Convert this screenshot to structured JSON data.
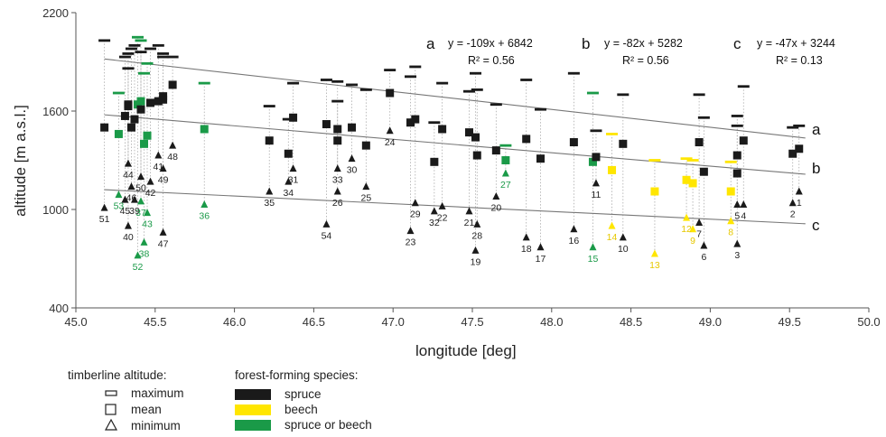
{
  "chart_data": {
    "type": "scatter",
    "xlabel": "longitude [deg]",
    "ylabel": "altitude [m a.s.l.]",
    "xlim": [
      45.0,
      50.0
    ],
    "ylim": [
      400,
      2200
    ],
    "xticks": [
      "45.0",
      "45.5",
      "46.0",
      "46.5",
      "47.0",
      "47.5",
      "48.0",
      "48.5",
      "49.0",
      "49.5",
      "50.0"
    ],
    "yticks": [
      "400",
      "1000",
      "1600",
      "2200"
    ],
    "colors": {
      "spruce": "#1a1a1a",
      "beech": "#ffe600",
      "spruce_or_beech": "#1a9a48"
    },
    "regressions": [
      {
        "letter": "a",
        "equation": "y = -109x + 6842",
        "r2": "R² = 0.56",
        "slope": -109,
        "intercept": 6842
      },
      {
        "letter": "b",
        "equation": "y = -82x + 5282",
        "r2": "R² = 0.56",
        "slope": -82,
        "intercept": 5282
      },
      {
        "letter": "c",
        "equation": "y = -47x + 3244",
        "r2": "R² = 0.13",
        "slope": -47,
        "intercept": 3244
      }
    ],
    "sites": [
      {
        "id": "51",
        "lon": 45.18,
        "max": 2030,
        "mean": 1500,
        "min": 1010,
        "species": "spruce"
      },
      {
        "id": "53",
        "lon": 45.27,
        "max": 1710,
        "mean": 1460,
        "min": 1090,
        "species": "spruce or beech"
      },
      {
        "id": "45",
        "lon": 45.31,
        "max": 1930,
        "mean": 1570,
        "min": 1060,
        "species": "spruce"
      },
      {
        "id": "44",
        "lon": 45.33,
        "max": 1860,
        "mean": 1630,
        "min": 1280,
        "species": "spruce"
      },
      {
        "id": "40",
        "lon": 45.33,
        "max": 1950,
        "mean": 1640,
        "min": 900,
        "species": "spruce"
      },
      {
        "id": "46",
        "lon": 45.35,
        "max": 1980,
        "mean": 1500,
        "min": 1140,
        "species": "spruce"
      },
      {
        "id": "39",
        "lon": 45.37,
        "max": 2000,
        "mean": 1550,
        "min": 1060,
        "species": "spruce"
      },
      {
        "id": "52",
        "lon": 45.39,
        "max": 2050,
        "mean": 1640,
        "min": 720,
        "species": "spruce or beech"
      },
      {
        "id": "37",
        "lon": 45.41,
        "max": 2030,
        "mean": 1660,
        "min": 1050,
        "species": "spruce or beech"
      },
      {
        "id": "50",
        "lon": 45.41,
        "max": 1960,
        "mean": 1610,
        "min": 1200,
        "species": "spruce"
      },
      {
        "id": "38",
        "lon": 45.43,
        "max": 1830,
        "mean": 1400,
        "min": 800,
        "species": "spruce or beech"
      },
      {
        "id": "43",
        "lon": 45.45,
        "max": 1890,
        "mean": 1450,
        "min": 980,
        "species": "spruce or beech"
      },
      {
        "id": "42",
        "lon": 45.47,
        "max": 1980,
        "mean": 1650,
        "min": 1170,
        "species": "spruce"
      },
      {
        "id": "41",
        "lon": 45.52,
        "max": 2000,
        "mean": 1660,
        "min": 1330,
        "species": "spruce"
      },
      {
        "id": "49",
        "lon": 45.55,
        "max": 1950,
        "mean": 1670,
        "min": 1250,
        "species": "spruce"
      },
      {
        "id": "47",
        "lon": 45.55,
        "max": 1930,
        "mean": 1690,
        "min": 860,
        "species": "spruce"
      },
      {
        "id": "48",
        "lon": 45.61,
        "max": 1930,
        "mean": 1760,
        "min": 1390,
        "species": "spruce"
      },
      {
        "id": "36",
        "lon": 45.81,
        "max": 1770,
        "mean": 1490,
        "min": 1030,
        "species": "spruce or beech"
      },
      {
        "id": "35",
        "lon": 46.22,
        "max": 1630,
        "mean": 1420,
        "min": 1110,
        "species": "spruce"
      },
      {
        "id": "34",
        "lon": 46.34,
        "max": 1550,
        "mean": 1340,
        "min": 1170,
        "species": "spruce"
      },
      {
        "id": "31",
        "lon": 46.37,
        "max": 1770,
        "mean": 1560,
        "min": 1250,
        "species": "spruce"
      },
      {
        "id": "54",
        "lon": 46.58,
        "max": 1790,
        "mean": 1520,
        "min": 910,
        "species": "spruce"
      },
      {
        "id": "33",
        "lon": 46.65,
        "max": 1780,
        "mean": 1490,
        "min": 1250,
        "species": "spruce"
      },
      {
        "id": "26",
        "lon": 46.65,
        "max": 1660,
        "mean": 1420,
        "min": 1110,
        "species": "spruce"
      },
      {
        "id": "30",
        "lon": 46.74,
        "max": 1760,
        "mean": 1500,
        "min": 1310,
        "species": "spruce"
      },
      {
        "id": "25",
        "lon": 46.83,
        "max": 1730,
        "mean": 1390,
        "min": 1140,
        "species": "spruce"
      },
      {
        "id": "24",
        "lon": 46.98,
        "max": 1850,
        "mean": 1710,
        "min": 1480,
        "species": "spruce"
      },
      {
        "id": "23",
        "lon": 47.11,
        "max": 1810,
        "mean": 1530,
        "min": 870,
        "species": "spruce"
      },
      {
        "id": "29",
        "lon": 47.14,
        "max": 1870,
        "mean": 1550,
        "min": 1040,
        "species": "spruce"
      },
      {
        "id": "32",
        "lon": 47.26,
        "max": 1530,
        "mean": 1290,
        "min": 990,
        "species": "spruce"
      },
      {
        "id": "22",
        "lon": 47.31,
        "max": 1770,
        "mean": 1490,
        "min": 1020,
        "species": "spruce"
      },
      {
        "id": "21",
        "lon": 47.48,
        "max": 1720,
        "mean": 1470,
        "min": 990,
        "species": "spruce"
      },
      {
        "id": "19",
        "lon": 47.52,
        "max": 1830,
        "mean": 1440,
        "min": 750,
        "species": "spruce"
      },
      {
        "id": "28",
        "lon": 47.53,
        "max": 1730,
        "mean": 1330,
        "min": 910,
        "species": "spruce"
      },
      {
        "id": "20",
        "lon": 47.65,
        "max": 1640,
        "mean": 1360,
        "min": 1080,
        "species": "spruce"
      },
      {
        "id": "27",
        "lon": 47.71,
        "max": 1390,
        "mean": 1300,
        "min": 1220,
        "species": "spruce or beech"
      },
      {
        "id": "18",
        "lon": 47.84,
        "max": 1790,
        "mean": 1430,
        "min": 830,
        "species": "spruce"
      },
      {
        "id": "17",
        "lon": 47.93,
        "max": 1610,
        "mean": 1310,
        "min": 770,
        "species": "spruce"
      },
      {
        "id": "16",
        "lon": 48.14,
        "max": 1830,
        "mean": 1410,
        "min": 880,
        "species": "spruce"
      },
      {
        "id": "15",
        "lon": 48.26,
        "max": 1710,
        "mean": 1290,
        "min": 770,
        "species": "spruce or beech"
      },
      {
        "id": "11",
        "lon": 48.28,
        "max": 1480,
        "mean": 1320,
        "min": 1160,
        "species": "spruce"
      },
      {
        "id": "14",
        "lon": 48.38,
        "max": 1460,
        "mean": 1240,
        "min": 900,
        "species": "beech"
      },
      {
        "id": "10",
        "lon": 48.45,
        "max": 1700,
        "mean": 1400,
        "min": 830,
        "species": "spruce"
      },
      {
        "id": "13",
        "lon": 48.65,
        "max": 1300,
        "mean": 1110,
        "min": 730,
        "species": "beech"
      },
      {
        "id": "12",
        "lon": 48.85,
        "max": 1310,
        "mean": 1180,
        "min": 950,
        "species": "beech"
      },
      {
        "id": "9",
        "lon": 48.89,
        "max": 1300,
        "mean": 1160,
        "min": 880,
        "species": "beech"
      },
      {
        "id": "7",
        "lon": 48.93,
        "max": 1700,
        "mean": 1410,
        "min": 920,
        "species": "spruce"
      },
      {
        "id": "6",
        "lon": 48.96,
        "max": 1560,
        "mean": 1230,
        "min": 780,
        "species": "spruce"
      },
      {
        "id": "8",
        "lon": 49.13,
        "max": 1290,
        "mean": 1110,
        "min": 930,
        "species": "beech"
      },
      {
        "id": "5",
        "lon": 49.17,
        "max": 1570,
        "mean": 1330,
        "min": 1030,
        "species": "spruce"
      },
      {
        "id": "3",
        "lon": 49.17,
        "max": 1510,
        "mean": 1220,
        "min": 790,
        "species": "spruce"
      },
      {
        "id": "4",
        "lon": 49.21,
        "max": 1750,
        "mean": 1420,
        "min": 1030,
        "species": "spruce"
      },
      {
        "id": "2",
        "lon": 49.52,
        "max": 1500,
        "mean": 1340,
        "min": 1040,
        "species": "spruce"
      },
      {
        "id": "1",
        "lon": 49.56,
        "max": 1510,
        "mean": 1370,
        "min": 1110,
        "species": "spruce"
      }
    ]
  },
  "legend": {
    "timberline": {
      "title": "timberline altitude:",
      "items": [
        "maximum",
        "mean",
        "minimum"
      ]
    },
    "species": {
      "title": "forest-forming species:",
      "items": [
        {
          "label": "spruce",
          "key": "spruce"
        },
        {
          "label": "beech",
          "key": "beech"
        },
        {
          "label": "spruce or beech",
          "key": "spruce_or_beech"
        }
      ]
    }
  }
}
